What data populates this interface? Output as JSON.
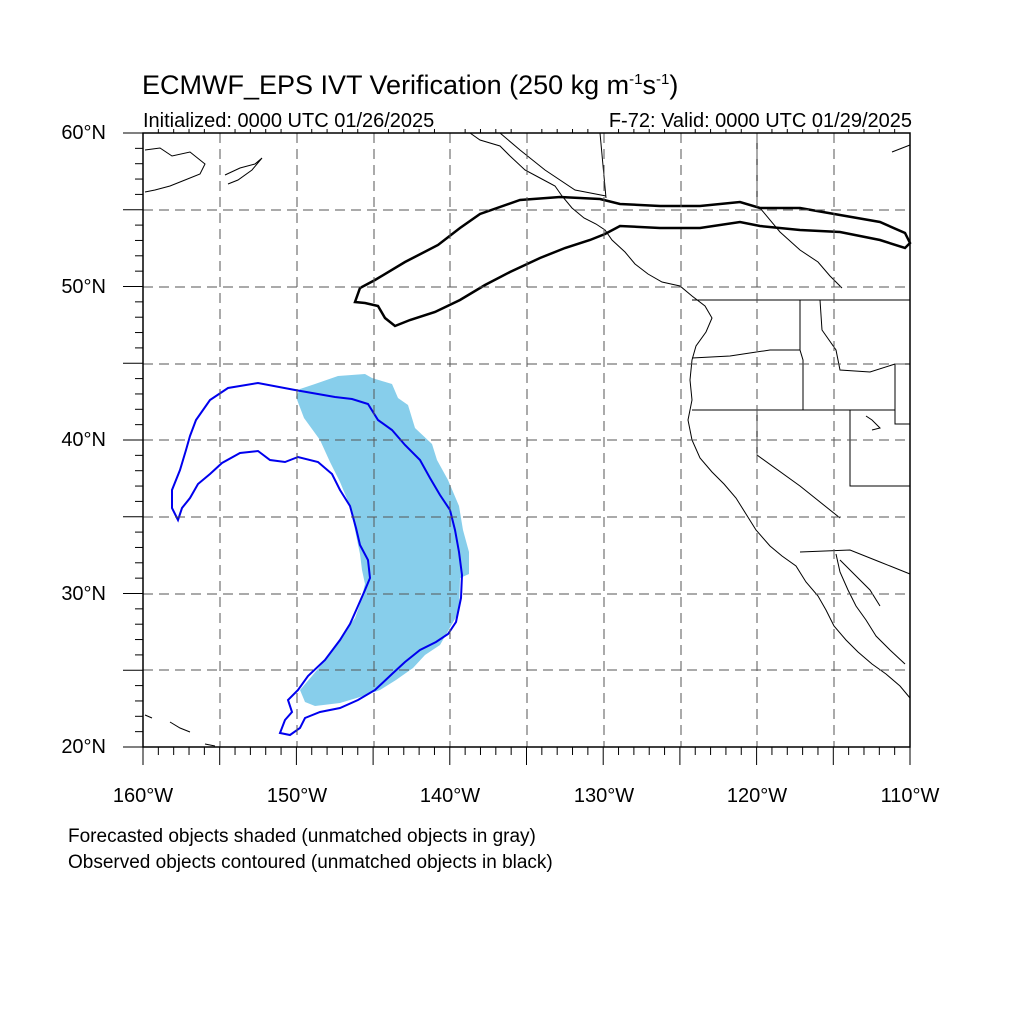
{
  "header": {
    "title_main": "ECMWF_EPS IVT Verification (250 kg m",
    "title_exp1": "-1",
    "title_mid": "s",
    "title_exp2": "-1",
    "title_end": ")",
    "initialized": "Initialized: 0000 UTC 01/26/2025",
    "valid": "F-72: Valid: 0000 UTC 01/29/2025"
  },
  "axes": {
    "lat_labels": [
      "60°N",
      "50°N",
      "40°N",
      "30°N",
      "20°N"
    ],
    "lon_labels": [
      "160°W",
      "150°W",
      "140°W",
      "130°W",
      "120°W",
      "110°W"
    ],
    "lat_range": [
      20,
      60
    ],
    "lon_range": [
      -160,
      -110
    ],
    "grid": "dashed every 5°"
  },
  "legend": {
    "line1": "Forecasted objects shaded (unmatched objects in gray)",
    "line2": "Observed objects contoured (unmatched objects in black)"
  },
  "colors": {
    "forecast_fill": "#87ceeb",
    "observed_matched": "#0000ee",
    "observed_unmatched": "#000000",
    "grid": "#555555"
  }
}
